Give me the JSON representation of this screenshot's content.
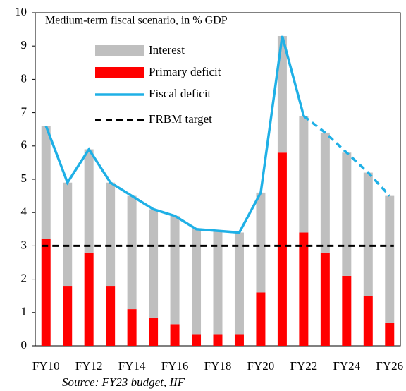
{
  "chart_data": {
    "type": "bar",
    "annotation": "Medium-term fiscal scenario, in % GDP",
    "source": "Source: FY23 budget, IIF",
    "categories": [
      "FY10",
      null,
      "FY12",
      null,
      "FY14",
      null,
      "FY16",
      null,
      "FY18",
      null,
      "FY20",
      null,
      "FY22",
      null,
      "FY24",
      null,
      "FY26"
    ],
    "series": [
      {
        "name": "Interest",
        "kind": "bar",
        "color": "#bfbfbf",
        "values": [
          3.4,
          3.1,
          3.1,
          3.1,
          3.4,
          3.25,
          3.25,
          3.15,
          3.1,
          3.05,
          3.0,
          3.5,
          3.5,
          3.6,
          3.7,
          3.7,
          3.8
        ]
      },
      {
        "name": "Primary deficit",
        "kind": "bar",
        "color": "#ff0000",
        "values": [
          3.2,
          1.8,
          2.8,
          1.8,
          1.1,
          0.85,
          0.65,
          0.35,
          0.35,
          0.35,
          1.6,
          5.8,
          3.4,
          2.8,
          2.1,
          1.5,
          0.7
        ]
      },
      {
        "name": "Fiscal deficit",
        "kind": "line",
        "color": "#1fb0e6",
        "dashed_from": 12,
        "values": [
          6.6,
          4.9,
          5.9,
          4.9,
          4.5,
          4.1,
          3.9,
          3.5,
          3.45,
          3.4,
          4.6,
          9.3,
          6.9,
          6.4,
          5.8,
          5.2,
          4.5
        ]
      },
      {
        "name": "FRBM target",
        "kind": "hline",
        "color": "#000000",
        "value": 3
      }
    ],
    "ylim": [
      0,
      10
    ],
    "yticks": [
      0,
      1,
      2,
      3,
      4,
      5,
      6,
      7,
      8,
      9,
      10
    ],
    "grid": false
  }
}
